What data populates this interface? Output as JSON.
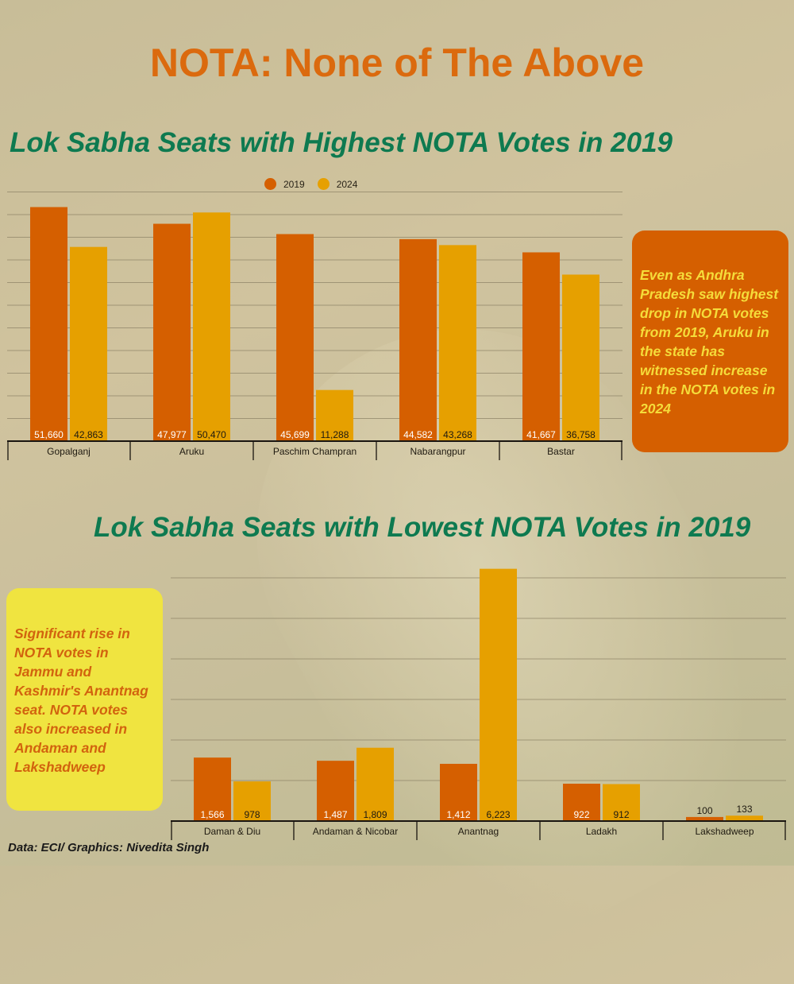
{
  "main_title": "NOTA: None of The Above",
  "legend": [
    {
      "label": "2019",
      "color": "#d55f00"
    },
    {
      "label": "2024",
      "color": "#e6a000"
    }
  ],
  "callouts": {
    "highest": "Even as Andhra Pradesh saw highest drop in NOTA votes from 2019, Aruku in the state has witnessed increase in the NOTA votes in 2024",
    "lowest": "Significant rise in NOTA votes in Jammu and Kashmir's Anantnag seat. NOTA votes also increased in Andaman and Lakshadweep"
  },
  "footer": "Data: ECI/ Graphics: Nivedita Singh",
  "chart_data": [
    {
      "type": "bar",
      "title": "Lok Sabha Seats with Highest NOTA Votes in 2019",
      "xlabel": "",
      "ylabel": "",
      "categories": [
        "Gopalganj",
        "Aruku",
        "Paschim Champran",
        "Nabarangpur",
        "Bastar"
      ],
      "series": [
        {
          "name": "2019",
          "color": "#d55f00",
          "values": [
            51660,
            47977,
            45699,
            44582,
            41667
          ],
          "labels": [
            "51,660",
            "47,977",
            "45,699",
            "44,582",
            "41,667"
          ]
        },
        {
          "name": "2024",
          "color": "#e6a000",
          "values": [
            42863,
            50470,
            11288,
            43268,
            36758
          ],
          "labels": [
            "42,863",
            "50,470",
            "11,288",
            "43,268",
            "36,758"
          ]
        }
      ],
      "ylim": [
        0,
        55000
      ],
      "grid_step": 5000,
      "grid": true,
      "legend_position": "top-center"
    },
    {
      "type": "bar",
      "title": "Lok Sabha Seats with Lowest NOTA Votes in 2019",
      "xlabel": "",
      "ylabel": "",
      "categories": [
        "Daman & Diu",
        "Andaman & Nicobar",
        "Anantnag",
        "Ladakh",
        "Lakshadweep"
      ],
      "series": [
        {
          "name": "2019",
          "color": "#d55f00",
          "values": [
            1566,
            1487,
            1412,
            922,
            100
          ],
          "labels": [
            "1,566",
            "1,487",
            "1,412",
            "922",
            "100"
          ]
        },
        {
          "name": "2024",
          "color": "#e6a000",
          "values": [
            978,
            1809,
            6223,
            912,
            133
          ],
          "labels": [
            "978",
            "1,809",
            "6,223",
            "912",
            "133"
          ]
        }
      ],
      "ylim": [
        0,
        6000
      ],
      "grid_step": 1000,
      "grid": true,
      "legend_position": "none"
    }
  ]
}
